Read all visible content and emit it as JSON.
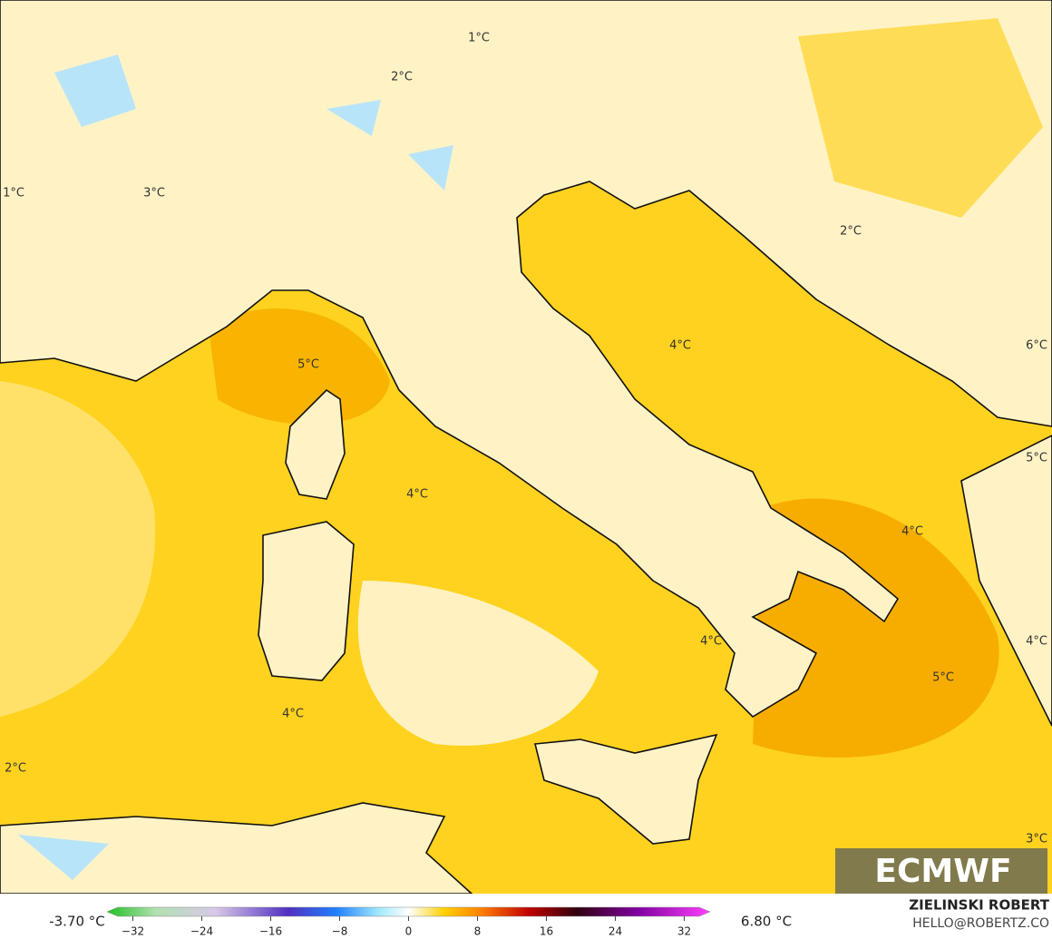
{
  "map": {
    "labels": [
      "1°C",
      "2°C",
      "1°C",
      "3°C",
      "2°C",
      "5°C",
      "4°C",
      "6°C",
      "4°C",
      "5°C",
      "4°C",
      "4°C",
      "4°C",
      "5°C",
      "4°C",
      "2°C",
      "3°C"
    ]
  },
  "colorbar": {
    "min_label": "-3.70 °C",
    "max_label": "6.80 °C",
    "lim": [
      -35,
      35
    ],
    "ticks": [
      {
        "value": -32,
        "label": "−32"
      },
      {
        "value": -24,
        "label": "−24"
      },
      {
        "value": -16,
        "label": "−16"
      },
      {
        "value": -8,
        "label": "−8"
      },
      0,
      8,
      16,
      24,
      32
    ]
  },
  "credit": {
    "name": "ZIELINSKI ROBERT",
    "contact": "HELLO@ROBERTZ.CO"
  },
  "logo": "ECMWF"
}
